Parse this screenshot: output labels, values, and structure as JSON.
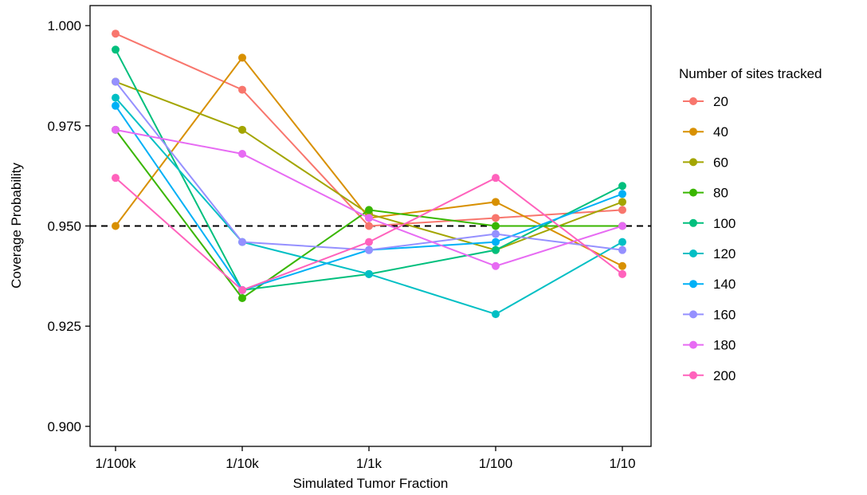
{
  "chart_data": {
    "type": "line",
    "title": "",
    "xlabel": "Simulated Tumor Fraction",
    "ylabel": "Coverage Probability",
    "categories": [
      "1/100k",
      "1/10k",
      "1/1k",
      "1/100",
      "1/10"
    ],
    "ylim": [
      0.895,
      1.005
    ],
    "yticks": [
      0.9,
      0.925,
      0.95,
      0.975,
      1.0
    ],
    "ytick_labels": [
      "0.900",
      "0.925",
      "0.950",
      "0.975",
      "1.000"
    ],
    "reference_line": {
      "y": 0.95,
      "style": "dashed",
      "color": "#000000"
    },
    "grid": false,
    "legend": {
      "title": "Number of sites tracked",
      "position": "right"
    },
    "series": [
      {
        "name": "20",
        "color": "#F8766D",
        "values": [
          0.998,
          0.984,
          0.95,
          0.952,
          0.954
        ]
      },
      {
        "name": "40",
        "color": "#D89000",
        "values": [
          0.95,
          0.992,
          0.952,
          0.956,
          0.94
        ]
      },
      {
        "name": "60",
        "color": "#A3A500",
        "values": [
          0.986,
          0.974,
          0.953,
          0.944,
          0.956
        ]
      },
      {
        "name": "80",
        "color": "#39B600",
        "values": [
          0.974,
          0.932,
          0.954,
          0.95,
          0.95
        ]
      },
      {
        "name": "100",
        "color": "#00BF7D",
        "values": [
          0.994,
          0.934,
          0.938,
          0.944,
          0.96
        ]
      },
      {
        "name": "120",
        "color": "#00BFC4",
        "values": [
          0.982,
          0.946,
          0.938,
          0.928,
          0.946
        ]
      },
      {
        "name": "140",
        "color": "#00B0F6",
        "values": [
          0.98,
          0.934,
          0.944,
          0.946,
          0.958
        ]
      },
      {
        "name": "160",
        "color": "#9590FF",
        "values": [
          0.986,
          0.946,
          0.944,
          0.948,
          0.944
        ]
      },
      {
        "name": "180",
        "color": "#E76BF3",
        "values": [
          0.974,
          0.968,
          0.952,
          0.94,
          0.95
        ]
      },
      {
        "name": "200",
        "color": "#FF62BC",
        "values": [
          0.962,
          0.934,
          0.946,
          0.962,
          0.938
        ]
      }
    ]
  }
}
